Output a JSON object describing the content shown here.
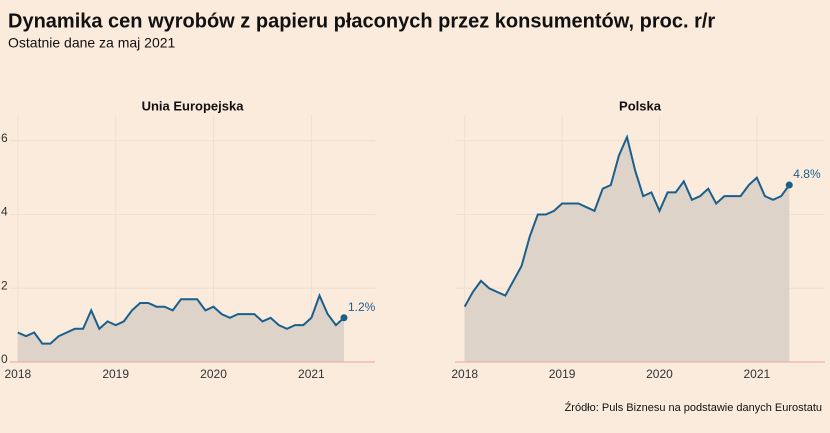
{
  "title": "Dynamika cen wyrobów z papieru płaconych przez konsumentów, proc. r/r",
  "subtitle": "Ostatnie dane za maj 2021",
  "source": "Źródło: Puls Biznesu na podstawie danych Eurostatu",
  "chart_data": [
    {
      "type": "area",
      "title": "Unia Europejska",
      "color": "#1b5f8c",
      "fill": "#ddd3c9",
      "grid": true,
      "x": [
        2018,
        2018.083,
        2018.167,
        2018.25,
        2018.333,
        2018.417,
        2018.5,
        2018.583,
        2018.667,
        2018.75,
        2018.833,
        2018.917,
        2019,
        2019.083,
        2019.167,
        2019.25,
        2019.333,
        2019.417,
        2019.5,
        2019.583,
        2019.667,
        2019.75,
        2019.833,
        2019.917,
        2020,
        2020.083,
        2020.167,
        2020.25,
        2020.333,
        2020.417,
        2020.5,
        2020.583,
        2020.667,
        2020.75,
        2020.833,
        2020.917,
        2021,
        2021.083,
        2021.167,
        2021.25,
        2021.333
      ],
      "values": [
        0.8,
        0.7,
        0.8,
        0.5,
        0.5,
        0.7,
        0.8,
        0.9,
        0.9,
        1.4,
        0.9,
        1.1,
        1.0,
        1.1,
        1.4,
        1.6,
        1.6,
        1.5,
        1.5,
        1.4,
        1.7,
        1.7,
        1.7,
        1.4,
        1.5,
        1.3,
        1.2,
        1.3,
        1.3,
        1.3,
        1.1,
        1.2,
        1.0,
        0.9,
        1.0,
        1.0,
        1.2,
        1.8,
        1.3,
        1.0,
        1.2
      ],
      "value_labels": [
        null,
        null,
        null,
        null,
        null,
        null,
        null,
        null,
        null,
        null,
        null,
        null,
        null,
        null,
        null,
        null,
        null,
        null,
        null,
        null,
        null,
        null,
        null,
        null,
        null,
        null,
        null,
        null,
        null,
        null,
        null,
        null,
        null,
        null,
        null,
        null,
        null,
        null,
        null,
        null,
        "1.2%"
      ],
      "xlim": [
        2017.92,
        2021.65
      ],
      "xticks": [
        2018,
        2019,
        2020,
        2021
      ],
      "ylim": [
        0,
        6.7
      ],
      "yticks": [
        0,
        2,
        4,
        6
      ]
    },
    {
      "type": "area",
      "title": "Polska",
      "color": "#1b5f8c",
      "fill": "#ddd3c9",
      "grid": true,
      "x": [
        2018,
        2018.083,
        2018.167,
        2018.25,
        2018.333,
        2018.417,
        2018.5,
        2018.583,
        2018.667,
        2018.75,
        2018.833,
        2018.917,
        2019,
        2019.083,
        2019.167,
        2019.25,
        2019.333,
        2019.417,
        2019.5,
        2019.583,
        2019.667,
        2019.75,
        2019.833,
        2019.917,
        2020,
        2020.083,
        2020.167,
        2020.25,
        2020.333,
        2020.417,
        2020.5,
        2020.583,
        2020.667,
        2020.75,
        2020.833,
        2020.917,
        2021,
        2021.083,
        2021.167,
        2021.25,
        2021.333
      ],
      "values": [
        1.5,
        1.9,
        2.2,
        2.0,
        1.9,
        1.8,
        2.2,
        2.6,
        3.4,
        4.0,
        4.0,
        4.1,
        4.3,
        4.3,
        4.3,
        4.2,
        4.1,
        4.7,
        4.8,
        5.6,
        6.1,
        5.2,
        4.5,
        4.6,
        4.1,
        4.6,
        4.6,
        4.9,
        4.4,
        4.5,
        4.7,
        4.3,
        4.5,
        4.5,
        4.5,
        4.8,
        5.0,
        4.5,
        4.4,
        4.5,
        4.8
      ],
      "value_labels": [
        null,
        null,
        null,
        null,
        null,
        null,
        null,
        null,
        null,
        null,
        null,
        null,
        null,
        null,
        null,
        null,
        null,
        null,
        null,
        null,
        null,
        null,
        null,
        null,
        null,
        null,
        null,
        null,
        null,
        null,
        null,
        null,
        null,
        null,
        null,
        null,
        null,
        null,
        null,
        null,
        "4.8%"
      ],
      "xlim": [
        2017.9,
        2021.7
      ],
      "xticks": [
        2018,
        2019,
        2020,
        2021
      ],
      "ylim": [
        0,
        6.7
      ]
    }
  ]
}
